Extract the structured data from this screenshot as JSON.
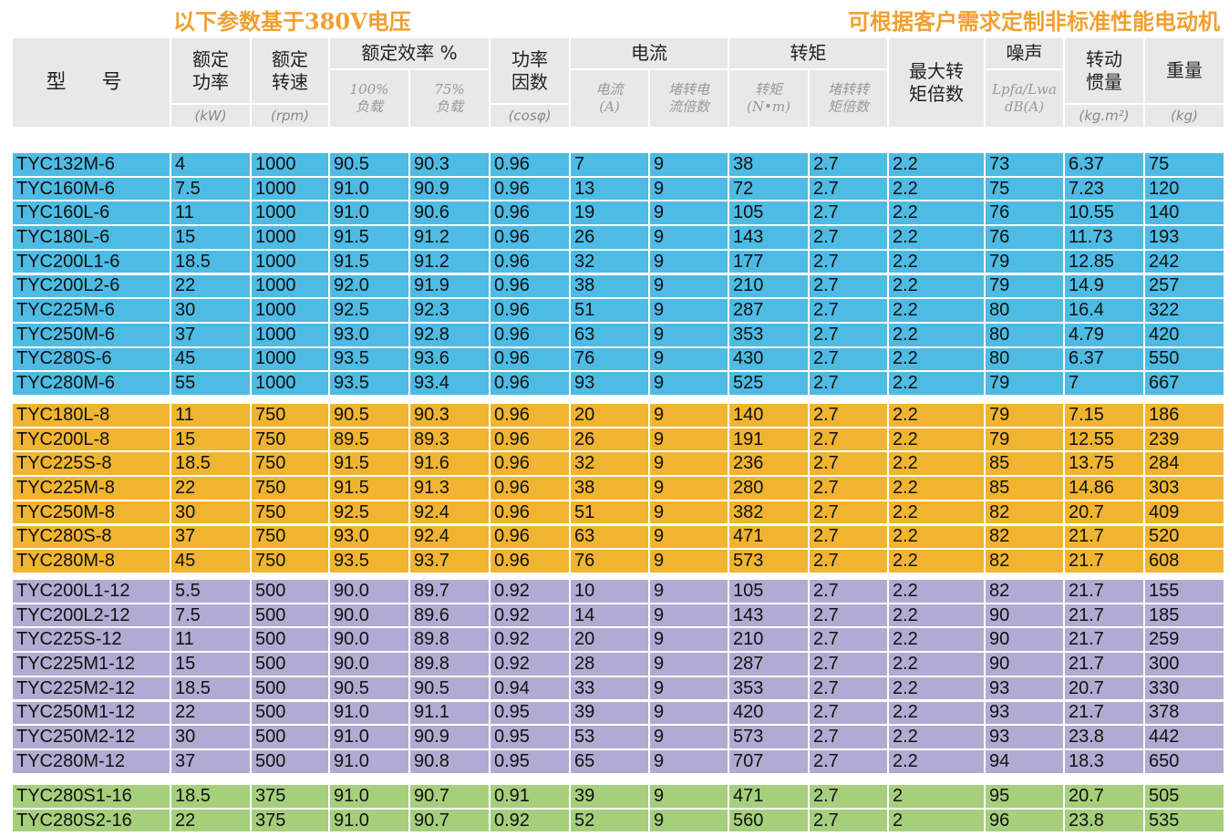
{
  "notes": {
    "left": "以下参数基于380V电压",
    "right": "可根据客户需求定制非标准性能电动机"
  },
  "colors": {
    "header_bg": "#e8e8e8",
    "pole6": "#4dbbe4",
    "pole8": "#f0b431",
    "pole12": "#b1abd3",
    "pole16": "#a6cf7c",
    "note": "#f0a030"
  },
  "headers": {
    "model": "型  号",
    "power": "额定\n功率",
    "power_unit": "(kW)",
    "speed": "额定\n转速",
    "speed_unit": "(rpm)",
    "efficiency": "额定效率 %",
    "eff100": "100%\n负载",
    "eff75": "75%\n负载",
    "pf": "功率\n因数",
    "pf_unit": "(cosφ)",
    "current": "电流",
    "current_a": "电流\n(A)",
    "stall_ratio": "堵转电\n流倍数",
    "torque": "转矩",
    "torque_nm": "转矩\n(N•m)",
    "stall_torque": "堵转转\n矩倍数",
    "max_torque": "最大转\n矩倍数",
    "noise": "噪声",
    "noise_unit": "Lpfa/Lwa\ndB(A)",
    "inertia": "转动\n惯量",
    "inertia_unit": "(kg.m²)",
    "weight": "重量",
    "weight_unit": "(kg)"
  },
  "groups": [
    {
      "color": "#4dbbe4",
      "rows": [
        [
          "TYC132M-6",
          "4",
          "1000",
          "90.5",
          "90.3",
          "0.96",
          "7",
          "9",
          "38",
          "2.7",
          "2.2",
          "73",
          "6.37",
          "75"
        ],
        [
          "TYC160M-6",
          "7.5",
          "1000",
          "91.0",
          "90.9",
          "0.96",
          "13",
          "9",
          "72",
          "2.7",
          "2.2",
          "75",
          "7.23",
          "120"
        ],
        [
          "TYC160L-6",
          "11",
          "1000",
          "91.0",
          "90.6",
          "0.96",
          "19",
          "9",
          "105",
          "2.7",
          "2.2",
          "76",
          "10.55",
          "140"
        ],
        [
          "TYC180L-6",
          "15",
          "1000",
          "91.5",
          "91.2",
          "0.96",
          "26",
          "9",
          "143",
          "2.7",
          "2.2",
          "76",
          "11.73",
          "193"
        ],
        [
          "TYC200L1-6",
          "18.5",
          "1000",
          "91.5",
          "91.2",
          "0.96",
          "32",
          "9",
          "177",
          "2.7",
          "2.2",
          "79",
          "12.85",
          "242"
        ],
        [
          "TYC200L2-6",
          "22",
          "1000",
          "92.0",
          "91.9",
          "0.96",
          "38",
          "9",
          "210",
          "2.7",
          "2.2",
          "79",
          "14.9",
          "257"
        ],
        [
          "TYC225M-6",
          "30",
          "1000",
          "92.5",
          "92.3",
          "0.96",
          "51",
          "9",
          "287",
          "2.7",
          "2.2",
          "80",
          "16.4",
          "322"
        ],
        [
          "TYC250M-6",
          "37",
          "1000",
          "93.0",
          "92.8",
          "0.96",
          "63",
          "9",
          "353",
          "2.7",
          "2.2",
          "80",
          "4.79",
          "420"
        ],
        [
          "TYC280S-6",
          "45",
          "1000",
          "93.5",
          "93.6",
          "0.96",
          "76",
          "9",
          "430",
          "2.7",
          "2.2",
          "80",
          "6.37",
          "550"
        ],
        [
          "TYC280M-6",
          "55",
          "1000",
          "93.5",
          "93.4",
          "0.96",
          "93",
          "9",
          "525",
          "2.7",
          "2.2",
          "79",
          "7",
          "667"
        ]
      ]
    },
    {
      "color": "#f0b431",
      "rows": [
        [
          "TYC180L-8",
          "11",
          "750",
          "90.5",
          "90.3",
          "0.96",
          "20",
          "9",
          "140",
          "2.7",
          "2.2",
          "79",
          "7.15",
          "186"
        ],
        [
          "TYC200L-8",
          "15",
          "750",
          "89.5",
          "89.3",
          "0.96",
          "26",
          "9",
          "191",
          "2.7",
          "2.2",
          "79",
          "12.55",
          "239"
        ],
        [
          "TYC225S-8",
          "18.5",
          "750",
          "91.5",
          "91.6",
          "0.96",
          "32",
          "9",
          "236",
          "2.7",
          "2.2",
          "85",
          "13.75",
          "284"
        ],
        [
          "TYC225M-8",
          "22",
          "750",
          "91.5",
          "91.3",
          "0.96",
          "38",
          "9",
          "280",
          "2.7",
          "2.2",
          "85",
          "14.86",
          "303"
        ],
        [
          "TYC250M-8",
          "30",
          "750",
          "92.5",
          "92.4",
          "0.96",
          "51",
          "9",
          "382",
          "2.7",
          "2.2",
          "82",
          "20.7",
          "409"
        ],
        [
          "TYC280S-8",
          "37",
          "750",
          "93.0",
          "92.4",
          "0.96",
          "63",
          "9",
          "471",
          "2.7",
          "2.2",
          "82",
          "21.7",
          "520"
        ],
        [
          "TYC280M-8",
          "45",
          "750",
          "93.5",
          "93.7",
          "0.96",
          "76",
          "9",
          "573",
          "2.7",
          "2.2",
          "82",
          "21.7",
          "608"
        ]
      ]
    },
    {
      "color": "#b1abd3",
      "rows": [
        [
          "TYC200L1-12",
          "5.5",
          "500",
          "90.0",
          "89.7",
          "0.92",
          "10",
          "9",
          "105",
          "2.7",
          "2.2",
          "82",
          "21.7",
          "155"
        ],
        [
          "TYC200L2-12",
          "7.5",
          "500",
          "90.0",
          "89.6",
          "0.92",
          "14",
          "9",
          "143",
          "2.7",
          "2.2",
          "90",
          "21.7",
          "185"
        ],
        [
          "TYC225S-12",
          "11",
          "500",
          "90.0",
          "89.8",
          "0.92",
          "20",
          "9",
          "210",
          "2.7",
          "2.2",
          "90",
          "21.7",
          "259"
        ],
        [
          "TYC225M1-12",
          "15",
          "500",
          "90.0",
          "89.8",
          "0.92",
          "28",
          "9",
          "287",
          "2.7",
          "2.2",
          "90",
          "21.7",
          "300"
        ],
        [
          "TYC225M2-12",
          "18.5",
          "500",
          "90.5",
          "90.5",
          "0.94",
          "33",
          "9",
          "353",
          "2.7",
          "2.2",
          "93",
          "20.7",
          "330"
        ],
        [
          "TYC250M1-12",
          "22",
          "500",
          "91.0",
          "91.1",
          "0.95",
          "39",
          "9",
          "420",
          "2.7",
          "2.2",
          "93",
          "21.7",
          "378"
        ],
        [
          "TYC250M2-12",
          "30",
          "500",
          "91.0",
          "90.9",
          "0.95",
          "53",
          "9",
          "573",
          "2.7",
          "2.2",
          "93",
          "23.8",
          "442"
        ],
        [
          "TYC280M-12",
          "37",
          "500",
          "91.0",
          "90.8",
          "0.95",
          "65",
          "9",
          "707",
          "2.7",
          "2.2",
          "94",
          "18.3",
          "650"
        ]
      ]
    },
    {
      "color": "#a6cf7c",
      "rows": [
        [
          "TYC280S1-16",
          "18.5",
          "375",
          "91.0",
          "90.7",
          "0.91",
          "39",
          "9",
          "471",
          "2.7",
          "2",
          "95",
          "20.7",
          "505"
        ],
        [
          "TYC280S2-16",
          "22",
          "375",
          "91.0",
          "90.7",
          "0.92",
          "52",
          "9",
          "560",
          "2.7",
          "2",
          "96",
          "23.8",
          "535"
        ]
      ]
    }
  ]
}
